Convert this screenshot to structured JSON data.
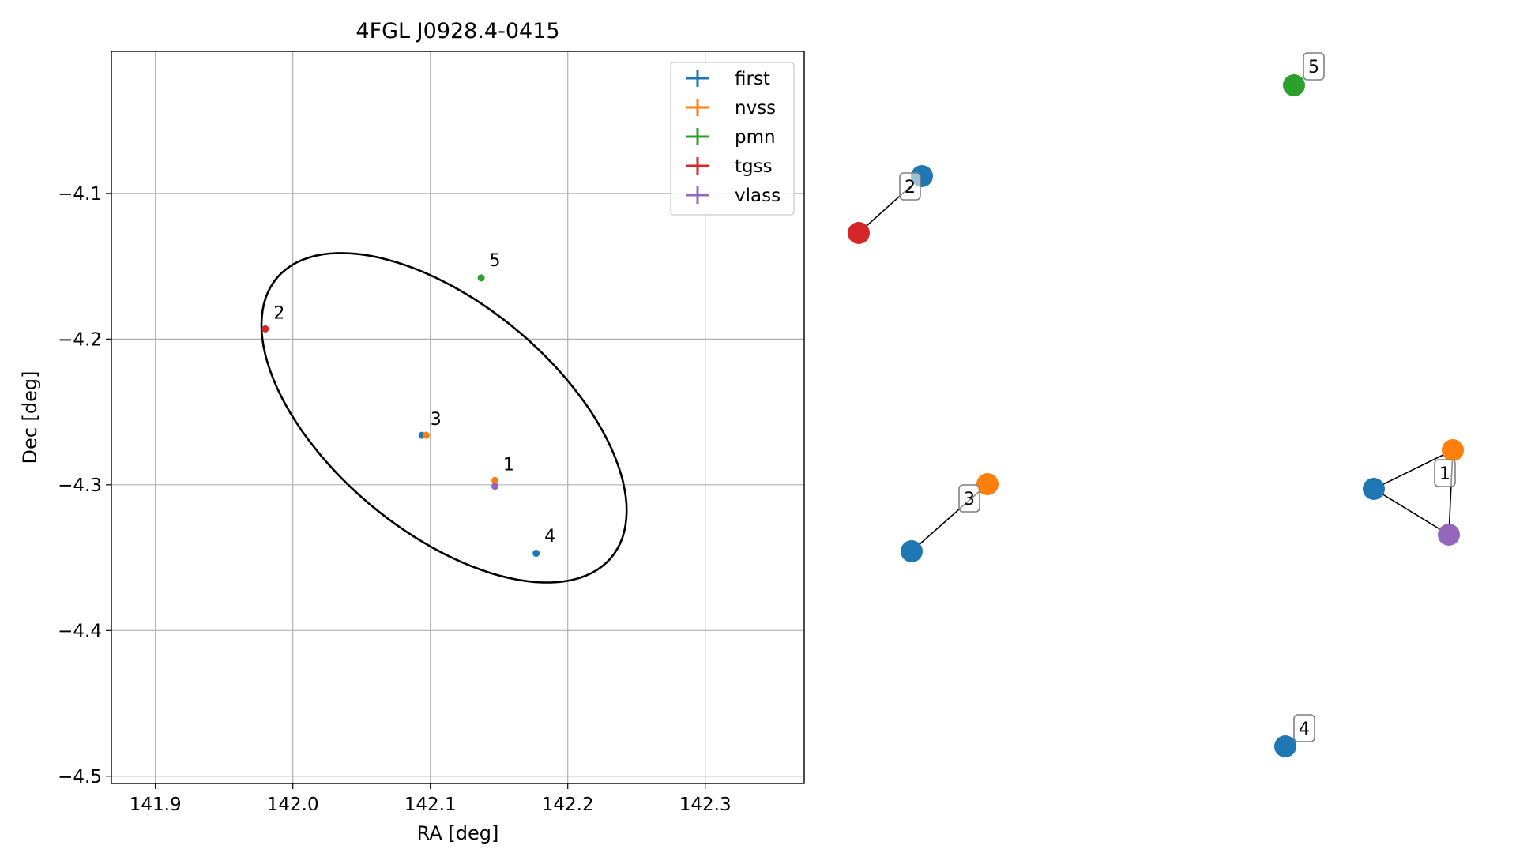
{
  "chart_data": [
    {
      "type": "scatter",
      "title": "4FGL J0928.4-0415",
      "xlabel": "RA [deg]",
      "ylabel": "Dec [deg]",
      "xlim": [
        141.868,
        142.372
      ],
      "ylim": [
        -4.505,
        -4.0025
      ],
      "xticks": [
        141.9,
        142.0,
        142.1,
        142.2,
        142.3
      ],
      "yticks": [
        -4.1,
        -4.2,
        -4.3,
        -4.4,
        -4.5
      ],
      "xtick_labels": [
        "141.9",
        "142.0",
        "142.1",
        "142.2",
        "142.3"
      ],
      "ytick_labels": [
        "−4.1",
        "−4.2",
        "−4.3",
        "−4.4",
        "−4.5"
      ],
      "grid": true,
      "legend_position": "top-right",
      "ellipse": {
        "center": [
          142.11,
          -4.254
        ],
        "semi_major": 0.155,
        "semi_minor": 0.08,
        "angle_deg": -37
      },
      "series": [
        {
          "name": "first",
          "color": "#1f77b4"
        },
        {
          "name": "nvss",
          "color": "#ff7f0e"
        },
        {
          "name": "pmn",
          "color": "#2ca02c"
        },
        {
          "name": "tgss",
          "color": "#d62728"
        },
        {
          "name": "vlass",
          "color": "#9467bd"
        }
      ],
      "points": [
        {
          "series": "nvss",
          "x": 142.147,
          "y": -4.297
        },
        {
          "series": "vlass",
          "x": 142.147,
          "y": -4.301
        },
        {
          "series": "tgss",
          "x": 141.98,
          "y": -4.193
        },
        {
          "series": "first",
          "x": 142.094,
          "y": -4.266
        },
        {
          "series": "nvss",
          "x": 142.097,
          "y": -4.266
        },
        {
          "series": "first",
          "x": 142.177,
          "y": -4.347
        },
        {
          "series": "pmn",
          "x": 142.137,
          "y": -4.158
        }
      ],
      "point_labels": [
        {
          "text": "1",
          "x": 142.153,
          "y": -4.29
        },
        {
          "text": "2",
          "x": 141.986,
          "y": -4.186
        },
        {
          "text": "3",
          "x": 142.1,
          "y": -4.259
        },
        {
          "text": "4",
          "x": 142.183,
          "y": -4.339
        },
        {
          "text": "5",
          "x": 142.143,
          "y": -4.15
        }
      ]
    },
    {
      "type": "scatter",
      "nodes": [
        {
          "series": "pmn",
          "color": "#2ca02c",
          "label": "5"
        },
        {
          "series": "first",
          "color": "#1f77b4",
          "label": "2"
        },
        {
          "series": "tgss",
          "color": "#d62728",
          "label": ""
        },
        {
          "series": "nvss",
          "color": "#ff7f0e",
          "label": ""
        },
        {
          "series": "first",
          "color": "#1f77b4",
          "label": "3"
        },
        {
          "series": "first",
          "color": "#1f77b4",
          "label": ""
        },
        {
          "series": "nvss",
          "color": "#ff7f0e",
          "label": "1"
        },
        {
          "series": "vlass",
          "color": "#9467bd",
          "label": ""
        },
        {
          "series": "first",
          "color": "#1f77b4",
          "label": "4"
        }
      ]
    }
  ]
}
